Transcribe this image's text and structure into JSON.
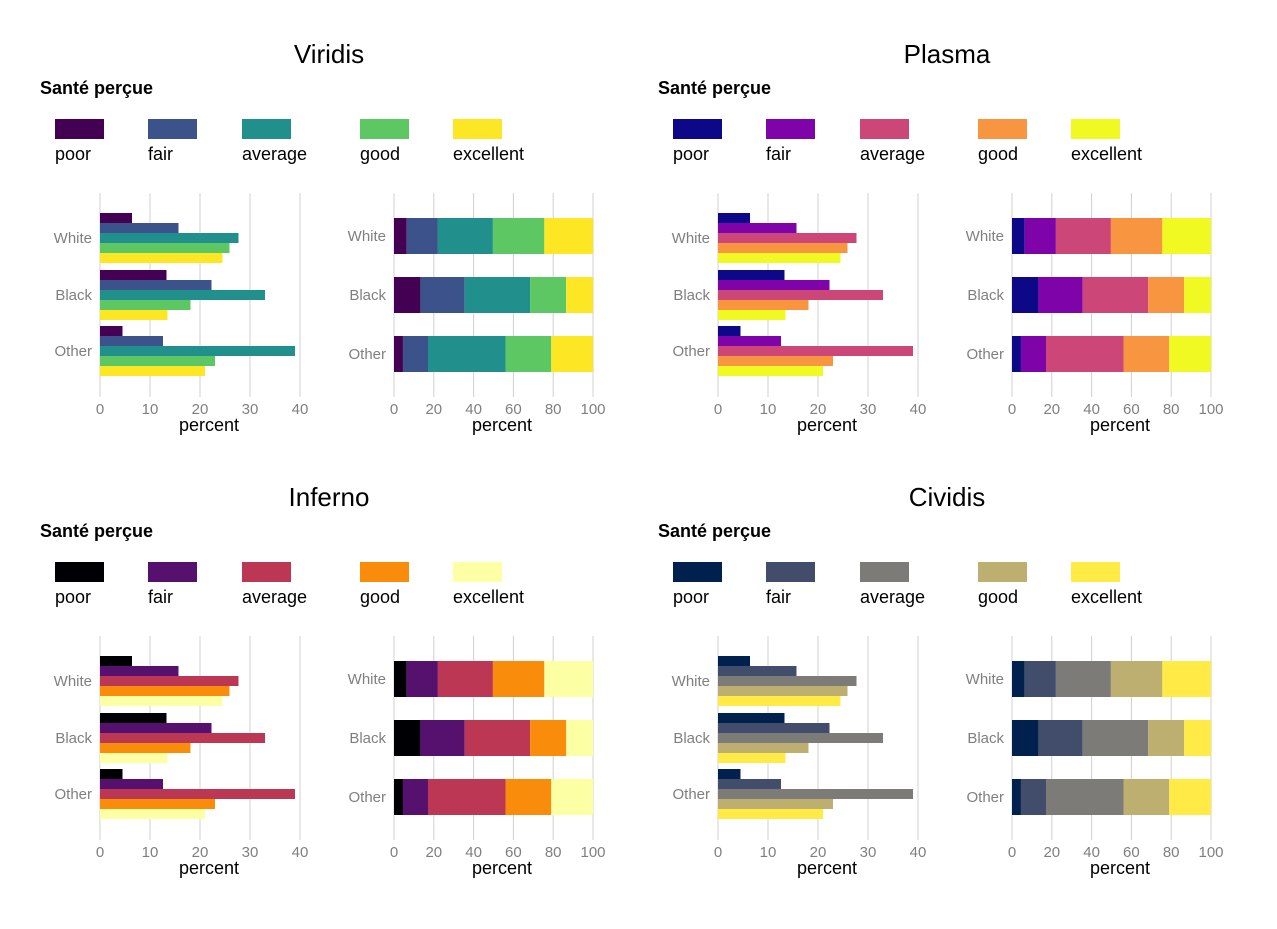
{
  "chart_data": [
    {
      "type": "bar",
      "title": "Viridis",
      "legend": {
        "title": "Santé perçue",
        "placement": "top",
        "entries": [
          "poor",
          "fair",
          "average",
          "good",
          "excellent"
        ]
      },
      "colors": [
        "#440154",
        "#3b528b",
        "#21908c",
        "#5dc863",
        "#fde725"
      ],
      "categories": [
        "White",
        "Black",
        "Other"
      ],
      "series": [
        {
          "name": "poor",
          "values": [
            6.4,
            13.3,
            4.5
          ]
        },
        {
          "name": "fair",
          "values": [
            15.7,
            22.3,
            12.6
          ]
        },
        {
          "name": "average",
          "values": [
            27.7,
            33.0,
            39.0
          ]
        },
        {
          "name": "good",
          "values": [
            25.9,
            18.1,
            23.0
          ]
        },
        {
          "name": "excellent",
          "values": [
            24.5,
            13.5,
            21.0
          ]
        }
      ],
      "dodged": {
        "xlabel": "percent",
        "ticks": [
          0,
          10,
          20,
          30,
          40
        ],
        "xlim": [
          0,
          40
        ]
      },
      "stacked": {
        "xlabel": "percent",
        "ticks": [
          0,
          20,
          40,
          60,
          80,
          100
        ],
        "xlim": [
          0,
          100
        ]
      }
    },
    {
      "type": "bar",
      "title": "Plasma",
      "legend": {
        "title": "Santé perçue",
        "placement": "top",
        "entries": [
          "poor",
          "fair",
          "average",
          "good",
          "excellent"
        ]
      },
      "colors": [
        "#0d0887",
        "#7e03a8",
        "#cc4778",
        "#f89540",
        "#f0f921"
      ],
      "categories": [
        "White",
        "Black",
        "Other"
      ],
      "series": [
        {
          "name": "poor",
          "values": [
            6.4,
            13.3,
            4.5
          ]
        },
        {
          "name": "fair",
          "values": [
            15.7,
            22.3,
            12.6
          ]
        },
        {
          "name": "average",
          "values": [
            27.7,
            33.0,
            39.0
          ]
        },
        {
          "name": "good",
          "values": [
            25.9,
            18.1,
            23.0
          ]
        },
        {
          "name": "excellent",
          "values": [
            24.5,
            13.5,
            21.0
          ]
        }
      ],
      "dodged": {
        "xlabel": "percent",
        "ticks": [
          0,
          10,
          20,
          30,
          40
        ],
        "xlim": [
          0,
          40
        ]
      },
      "stacked": {
        "xlabel": "percent",
        "ticks": [
          0,
          20,
          40,
          60,
          80,
          100
        ],
        "xlim": [
          0,
          100
        ]
      }
    },
    {
      "type": "bar",
      "title": "Inferno",
      "legend": {
        "title": "Santé perçue",
        "placement": "top",
        "entries": [
          "poor",
          "fair",
          "average",
          "good",
          "excellent"
        ]
      },
      "colors": [
        "#000004",
        "#56106e",
        "#bb3754",
        "#f98c0a",
        "#fcffa4"
      ],
      "categories": [
        "White",
        "Black",
        "Other"
      ],
      "series": [
        {
          "name": "poor",
          "values": [
            6.4,
            13.3,
            4.5
          ]
        },
        {
          "name": "fair",
          "values": [
            15.7,
            22.3,
            12.6
          ]
        },
        {
          "name": "average",
          "values": [
            27.7,
            33.0,
            39.0
          ]
        },
        {
          "name": "good",
          "values": [
            25.9,
            18.1,
            23.0
          ]
        },
        {
          "name": "excellent",
          "values": [
            24.5,
            13.5,
            21.0
          ]
        }
      ],
      "dodged": {
        "xlabel": "percent",
        "ticks": [
          0,
          10,
          20,
          30,
          40
        ],
        "xlim": [
          0,
          40
        ]
      },
      "stacked": {
        "xlabel": "percent",
        "ticks": [
          0,
          20,
          40,
          60,
          80,
          100
        ],
        "xlim": [
          0,
          100
        ]
      }
    },
    {
      "type": "bar",
      "title": "Cividis",
      "legend": {
        "title": "Santé perçue",
        "placement": "top",
        "entries": [
          "poor",
          "fair",
          "average",
          "good",
          "excellent"
        ]
      },
      "colors": [
        "#00204d",
        "#414d6b",
        "#7c7b78",
        "#bcaf6f",
        "#ffea46"
      ],
      "categories": [
        "White",
        "Black",
        "Other"
      ],
      "series": [
        {
          "name": "poor",
          "values": [
            6.4,
            13.3,
            4.5
          ]
        },
        {
          "name": "fair",
          "values": [
            15.7,
            22.3,
            12.6
          ]
        },
        {
          "name": "average",
          "values": [
            27.7,
            33.0,
            39.0
          ]
        },
        {
          "name": "good",
          "values": [
            25.9,
            18.1,
            23.0
          ]
        },
        {
          "name": "excellent",
          "values": [
            24.5,
            13.5,
            21.0
          ]
        }
      ],
      "dodged": {
        "xlabel": "percent",
        "ticks": [
          0,
          10,
          20,
          30,
          40
        ],
        "xlim": [
          0,
          40
        ]
      },
      "stacked": {
        "xlabel": "percent",
        "ticks": [
          0,
          20,
          40,
          60,
          80,
          100
        ],
        "xlim": [
          0,
          100
        ]
      }
    }
  ]
}
